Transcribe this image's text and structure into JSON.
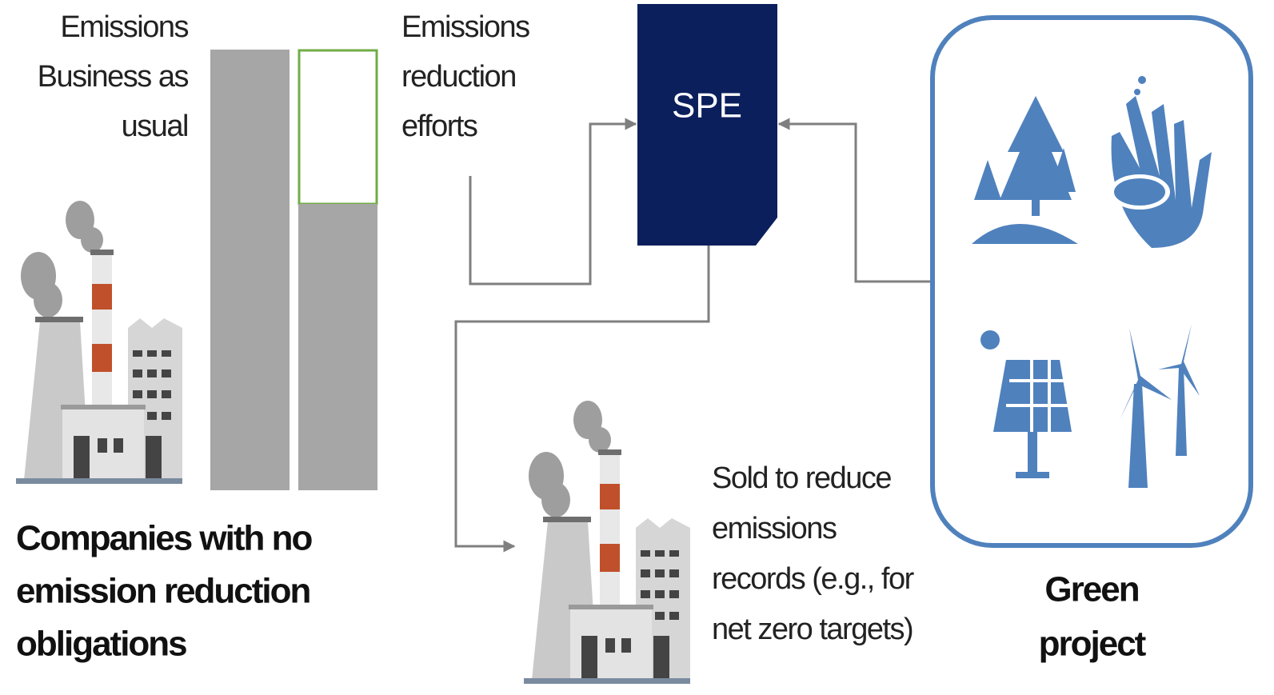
{
  "labels": {
    "business_as_usual": [
      "Emissions",
      "Business as",
      "usual"
    ],
    "reduction_efforts": [
      "Emissions",
      "reduction",
      "efforts"
    ],
    "spe": "SPE",
    "sold": [
      "Sold to reduce",
      "emissions",
      "records (e.g., for",
      "net zero targets)"
    ],
    "companies": [
      "Companies with no",
      "emission reduction",
      "obligations"
    ],
    "green_project": [
      "Green",
      "project"
    ]
  }
}
